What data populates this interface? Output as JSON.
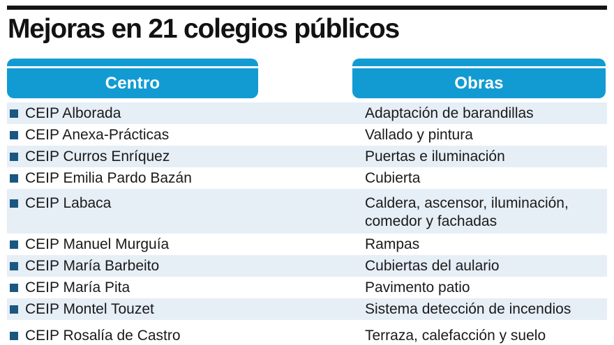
{
  "title": "Mejoras en 21 colegios públicos",
  "chart_data": {
    "type": "table",
    "title": "Mejoras en 21 colegios públicos",
    "columns": [
      "Centro",
      "Obras"
    ],
    "rows": [
      {
        "centro": "CEIP Alborada",
        "obras": "Adaptación de barandillas"
      },
      {
        "centro": "CEIP Anexa-Prácticas",
        "obras": "Vallado y pintura"
      },
      {
        "centro": "CEIP Curros Enríquez",
        "obras": "Puertas e iluminación"
      },
      {
        "centro": "CEIP Emilia Pardo Bazán",
        "obras": "Cubierta"
      },
      {
        "centro": "CEIP Labaca",
        "obras": "Caldera, ascensor, iluminación, comedor y fachadas"
      },
      {
        "centro": "CEIP Manuel Murguía",
        "obras": "Rampas"
      },
      {
        "centro": "CEIP María Barbeito",
        "obras": "Cubiertas del aulario"
      },
      {
        "centro": "CEIP María Pita",
        "obras": "Pavimento patio"
      },
      {
        "centro": "CEIP Montel Touzet",
        "obras": "Sistema detección de incendios"
      },
      {
        "centro": "CEIP Rosalía de Castro",
        "obras": "Terraza, calefacción y suelo"
      }
    ],
    "layout_hints": "alternating row stripes, first/odd rows tinted, bullet squares on Centro column only"
  },
  "colors": {
    "bar": "#129bd2",
    "alt": "#e6eef6",
    "bullet": "#1b5781",
    "rule": "#141414",
    "text": "#1a1a1a"
  }
}
